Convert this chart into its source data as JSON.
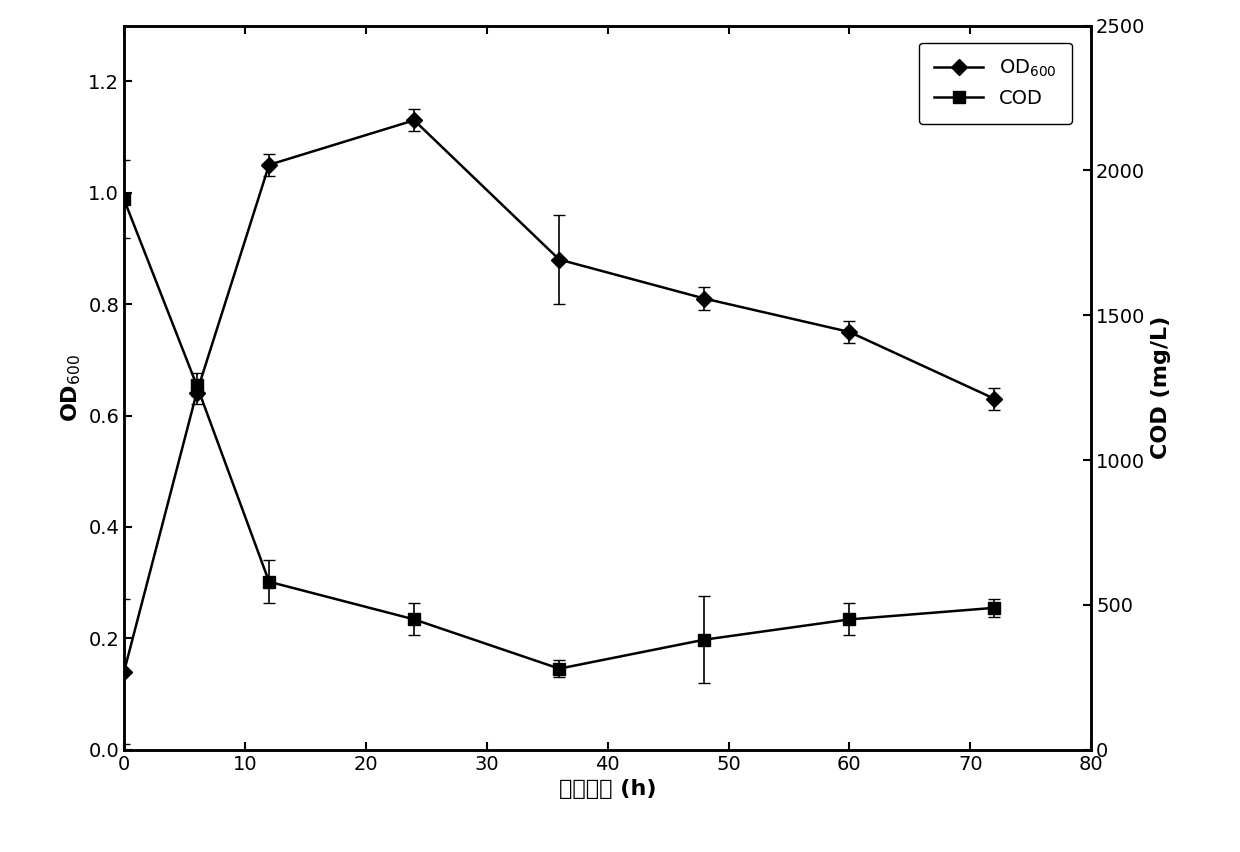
{
  "x": [
    0,
    6,
    12,
    24,
    36,
    48,
    60,
    72
  ],
  "od600_y": [
    0.14,
    0.64,
    1.05,
    1.13,
    0.88,
    0.81,
    0.75,
    0.63
  ],
  "od600_yerr": [
    0.13,
    0.02,
    0.02,
    0.02,
    0.08,
    0.02,
    0.02,
    0.02
  ],
  "cod_y": [
    1900,
    1260,
    580,
    450,
    280,
    380,
    450,
    490
  ],
  "cod_yerr": [
    135,
    40,
    75,
    55,
    30,
    150,
    55,
    30
  ],
  "xlim": [
    0,
    80
  ],
  "ylim_left": [
    0.0,
    1.3
  ],
  "ylim_right": [
    0,
    2500
  ],
  "xticks": [
    0,
    10,
    20,
    30,
    40,
    50,
    60,
    70,
    80
  ],
  "yticks_left": [
    0.0,
    0.2,
    0.4,
    0.6,
    0.8,
    1.0,
    1.2
  ],
  "yticks_right": [
    0,
    500,
    1000,
    1500,
    2000,
    2500
  ],
  "xlabel": "培养时间 (h)",
  "ylabel_left": "OD$_{600}$",
  "ylabel_right": "COD (mg/L)",
  "line_color": "#000000",
  "marker_od600": "D",
  "marker_cod": "s",
  "markersize": 8,
  "linewidth": 1.8,
  "capsize": 4,
  "legend_od600": "OD$_{600}$",
  "legend_cod": "COD",
  "background_color": "white",
  "fig_width": 12.4,
  "fig_height": 8.52,
  "dpi": 100,
  "tick_fontsize": 14,
  "label_fontsize": 16
}
